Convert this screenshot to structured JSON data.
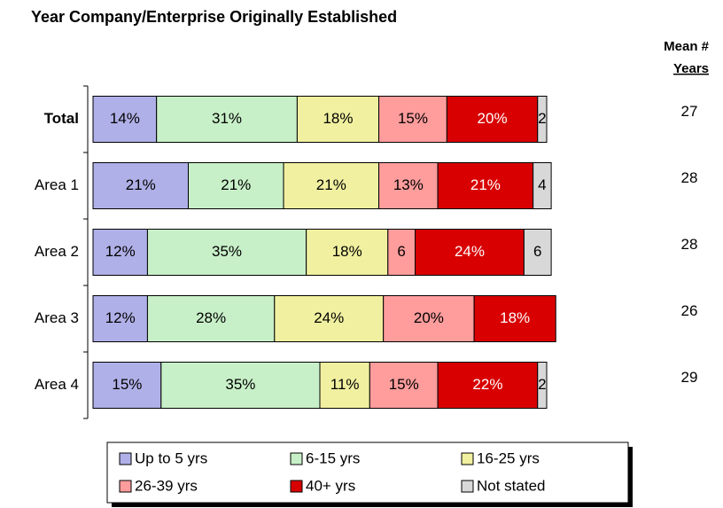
{
  "chart_data": {
    "type": "stacked-bar-horizontal",
    "title": "Year Company/Enterprise Originally Established",
    "categories": [
      "Total",
      "Area 1",
      "Area 2",
      "Area 3",
      "Area 4"
    ],
    "series": [
      {
        "name": "Up to 5 yrs",
        "color": "#b0b0e8",
        "values": [
          14,
          21,
          12,
          12,
          15
        ],
        "value_labels": [
          "14%",
          "21%",
          "12%",
          "12%",
          "15%"
        ]
      },
      {
        "name": "6-15 yrs",
        "color": "#c8f0c8",
        "values": [
          31,
          21,
          35,
          28,
          35
        ],
        "value_labels": [
          "31%",
          "21%",
          "35%",
          "28%",
          "35%"
        ]
      },
      {
        "name": "16-25 yrs",
        "color": "#f0f0a0",
        "values": [
          18,
          21,
          18,
          24,
          11
        ],
        "value_labels": [
          "18%",
          "21%",
          "18%",
          "24%",
          "11%"
        ]
      },
      {
        "name": "26-39 yrs",
        "color": "#ff9c9c",
        "values": [
          15,
          13,
          6,
          20,
          15
        ],
        "value_labels": [
          "15%",
          "13%",
          "6",
          "20%",
          "15%"
        ]
      },
      {
        "name": "40+ yrs",
        "color": "#d80000",
        "values": [
          20,
          21,
          24,
          18,
          22
        ],
        "value_labels": [
          "20%",
          "21%",
          "24%",
          "18%",
          "22%"
        ]
      },
      {
        "name": "Not stated",
        "color": "#d8d8d8",
        "values": [
          2,
          4,
          6,
          null,
          2
        ],
        "value_labels": [
          "2",
          "4",
          "6",
          null,
          "2"
        ]
      }
    ],
    "mean_header": [
      "Mean #",
      "Years"
    ],
    "mean_values": [
      27,
      28,
      28,
      26,
      29
    ]
  }
}
